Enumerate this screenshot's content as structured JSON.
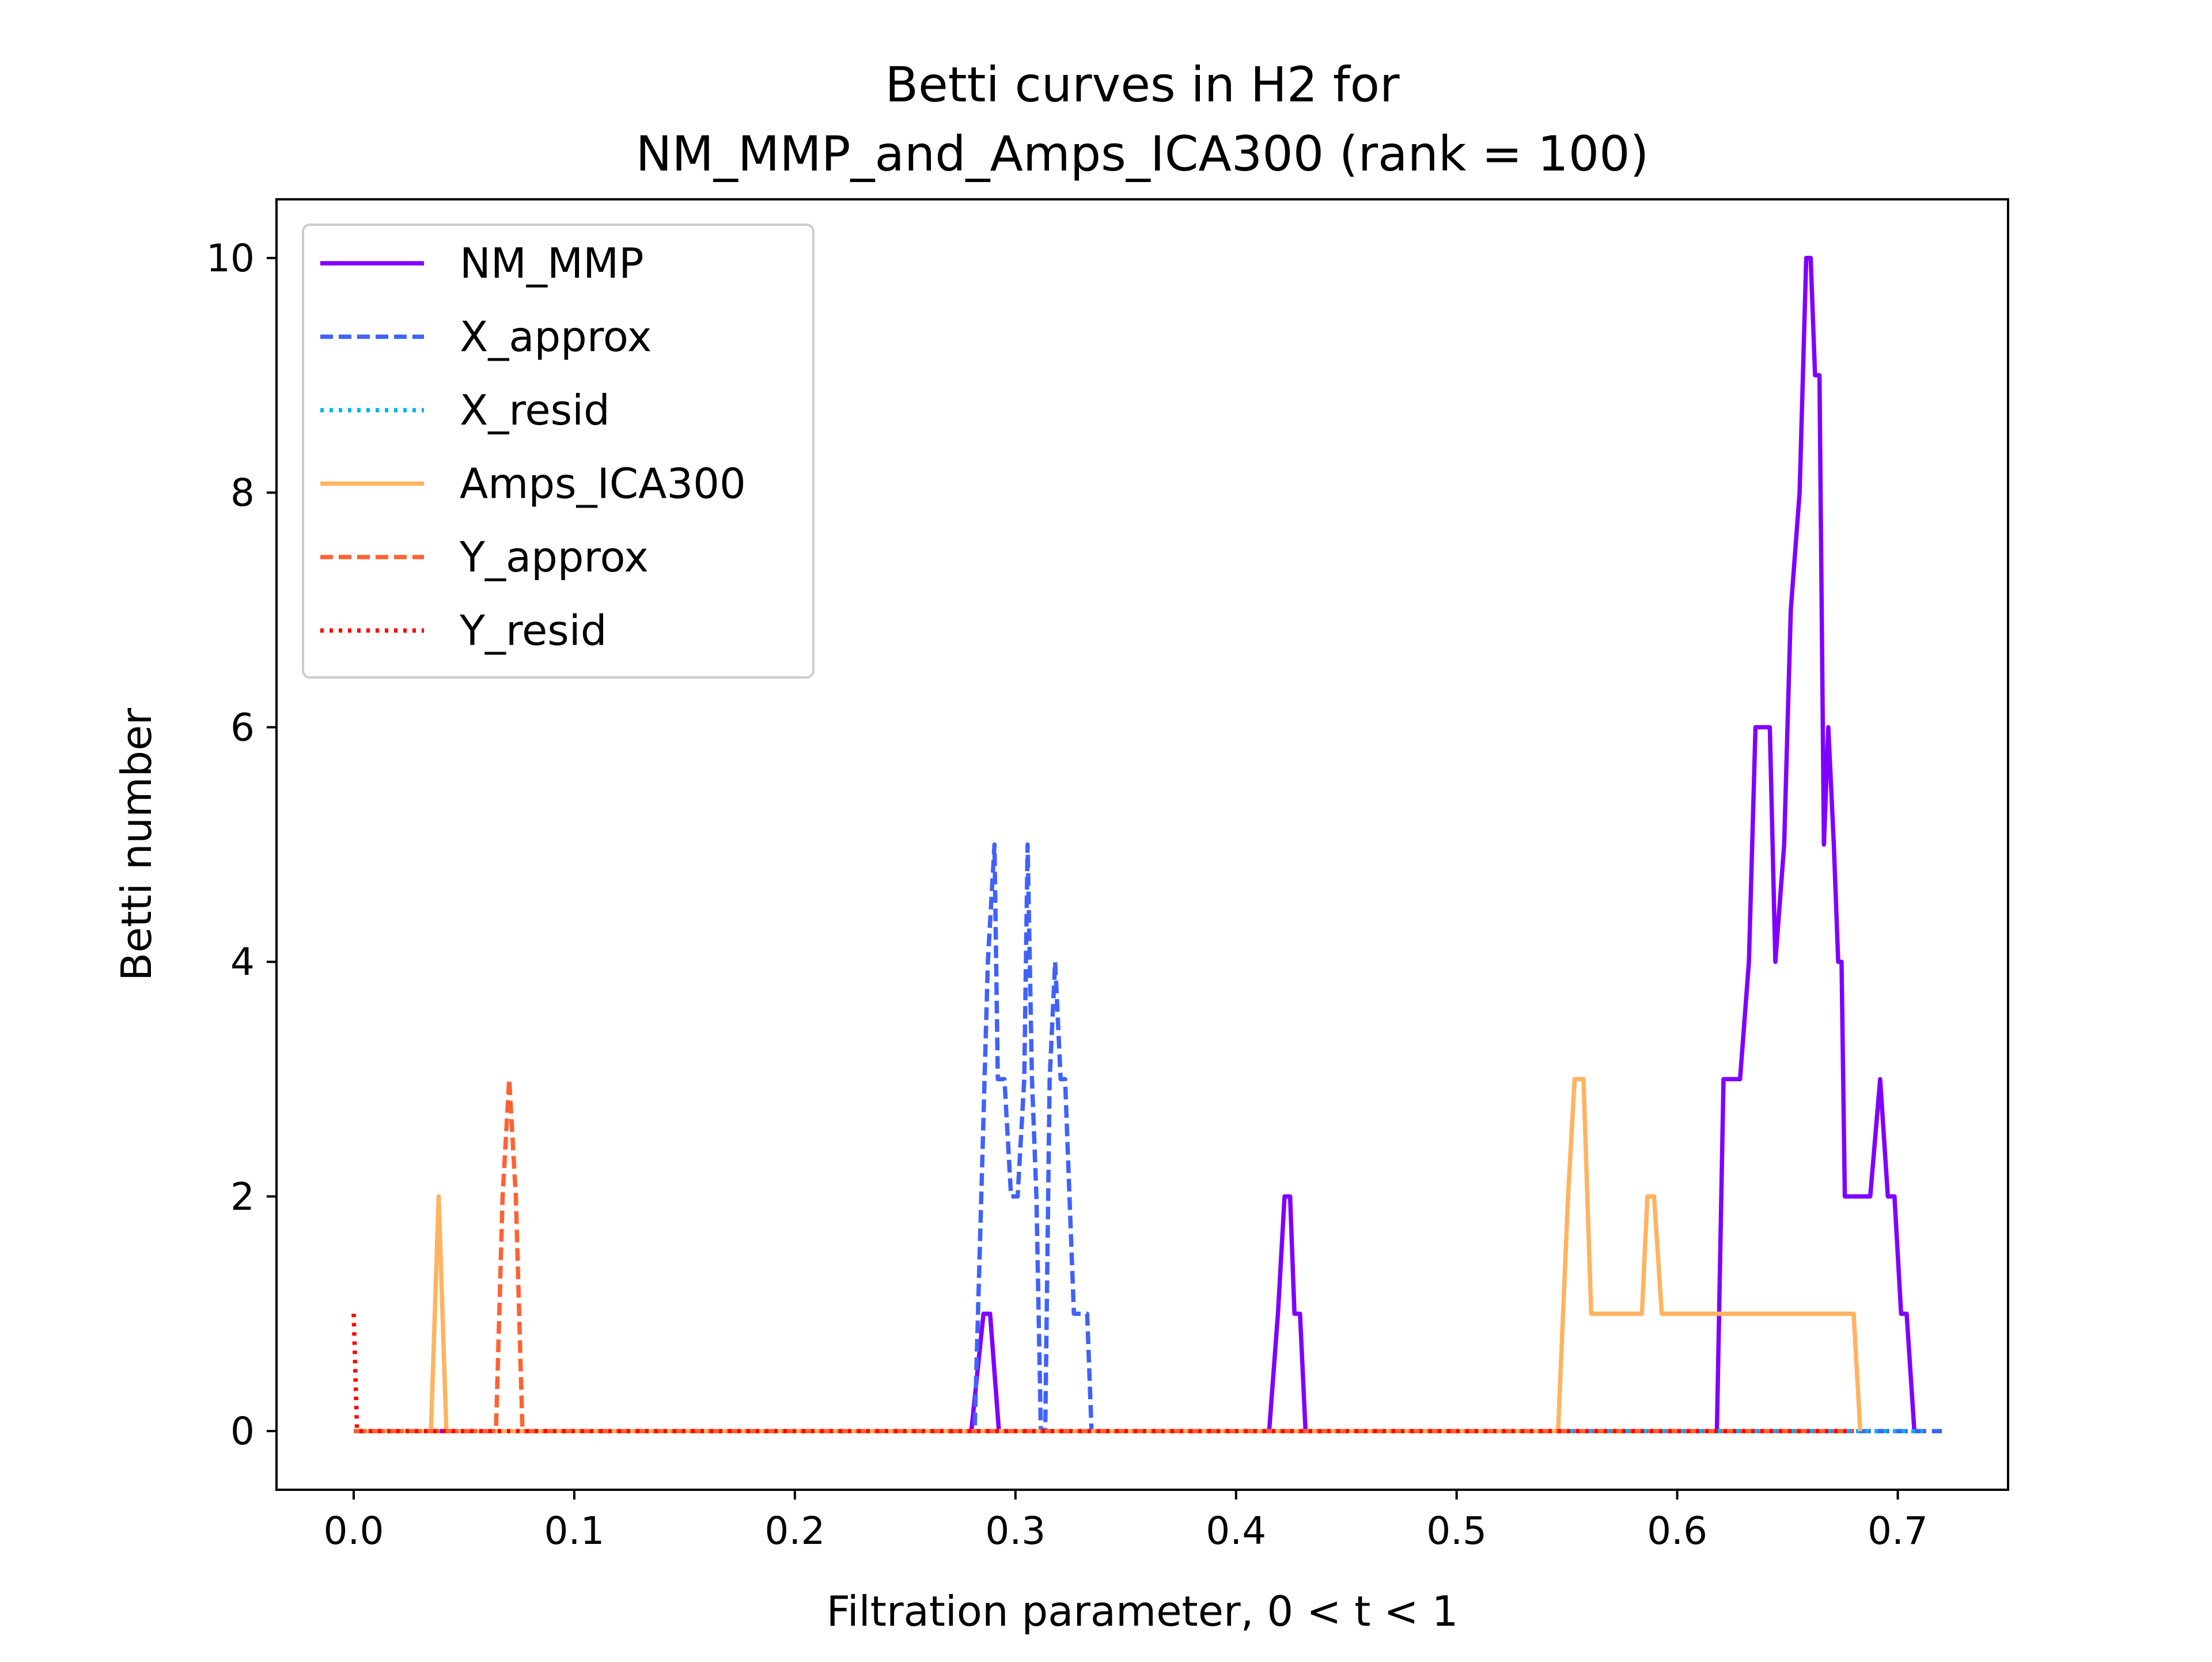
{
  "chart_data": {
    "type": "line",
    "title_line1": "Betti curves in H2 for",
    "title_line2": "NM_MMP_and_Amps_ICA300 (rank = 100)",
    "xlabel": "Filtration parameter, 0 < t < 1",
    "ylabel": "Betti number",
    "xlim": [
      -0.035,
      0.75
    ],
    "ylim": [
      -0.5,
      10.5
    ],
    "x_ticks": [
      0.0,
      0.1,
      0.2,
      0.3,
      0.4,
      0.5,
      0.6,
      0.7
    ],
    "x_tick_labels": [
      "0.0",
      "0.1",
      "0.2",
      "0.3",
      "0.4",
      "0.5",
      "0.6",
      "0.7"
    ],
    "y_ticks": [
      0,
      2,
      4,
      6,
      8,
      10
    ],
    "y_tick_labels": [
      "0",
      "2",
      "4",
      "6",
      "8",
      "10"
    ],
    "grid": false,
    "legend_position": "top-left",
    "series": [
      {
        "name": "NM_MMP",
        "color": "#8000ff",
        "style": "solid",
        "x": [
          0.0,
          0.28,
          0.2855,
          0.2885,
          0.2925,
          0.2955,
          0.415,
          0.419,
          0.422,
          0.4245,
          0.4265,
          0.429,
          0.4315,
          0.433,
          0.618,
          0.621,
          0.6225,
          0.6285,
          0.6325,
          0.6355,
          0.6375,
          0.642,
          0.6445,
          0.6485,
          0.6515,
          0.6555,
          0.6585,
          0.6605,
          0.6625,
          0.6645,
          0.6665,
          0.6685,
          0.671,
          0.673,
          0.6745,
          0.676,
          0.6775,
          0.679,
          0.682,
          0.6875,
          0.692,
          0.6955,
          0.6985,
          0.7015,
          0.704,
          0.7075,
          0.7115
        ],
        "y": [
          0,
          0,
          1,
          1,
          0,
          0,
          0,
          1,
          2,
          2,
          1,
          1,
          0,
          0,
          0,
          3,
          3,
          3,
          4,
          6,
          6,
          6,
          4,
          5,
          7,
          8,
          10,
          10,
          9,
          9,
          5,
          6,
          5,
          4,
          4,
          2,
          2,
          2,
          2,
          2,
          3,
          2,
          2,
          1,
          1,
          0,
          0
        ]
      },
      {
        "name": "X_approx",
        "color": "#4062fa",
        "style": "dashed",
        "x": [
          0.0,
          0.2815,
          0.2845,
          0.2875,
          0.2905,
          0.292,
          0.295,
          0.298,
          0.301,
          0.304,
          0.3055,
          0.3075,
          0.3095,
          0.3115,
          0.3135,
          0.3155,
          0.318,
          0.3205,
          0.3225,
          0.3245,
          0.3265,
          0.3295,
          0.3325,
          0.3345,
          0.3365,
          0.339,
          0.72
        ],
        "y": [
          0,
          0,
          2,
          4,
          5,
          3,
          3,
          2,
          2,
          3,
          5,
          3,
          2,
          0,
          0,
          3,
          4,
          3,
          3,
          2,
          1,
          1,
          1,
          0,
          0,
          0,
          0
        ]
      },
      {
        "name": "X_resid",
        "color": "#00b5eb",
        "style": "dotted",
        "x": [
          0.0,
          0.7115
        ],
        "y": [
          0,
          0
        ]
      },
      {
        "name": "Amps_ICA300",
        "color": "#ffb360",
        "style": "solid",
        "x": [
          0.0,
          0.035,
          0.0385,
          0.042,
          0.546,
          0.5505,
          0.5535,
          0.5575,
          0.561,
          0.584,
          0.5865,
          0.5895,
          0.593,
          0.68,
          0.683
        ],
        "y": [
          0,
          0,
          2,
          0,
          0,
          2,
          3,
          3,
          1,
          1,
          2,
          2,
          1,
          1,
          0
        ]
      },
      {
        "name": "Y_approx",
        "color": "#ff6232",
        "style": "dashed",
        "x": [
          0.0,
          0.0645,
          0.0675,
          0.0705,
          0.0735,
          0.0765,
          0.68
        ],
        "y": [
          0,
          0,
          2,
          3,
          2,
          0,
          0
        ]
      },
      {
        "name": "Y_resid",
        "color": "#ff0000",
        "style": "dotted",
        "x": [
          0.0,
          0.0015,
          0.003,
          0.68
        ],
        "y": [
          1,
          0,
          0,
          0
        ]
      }
    ]
  }
}
